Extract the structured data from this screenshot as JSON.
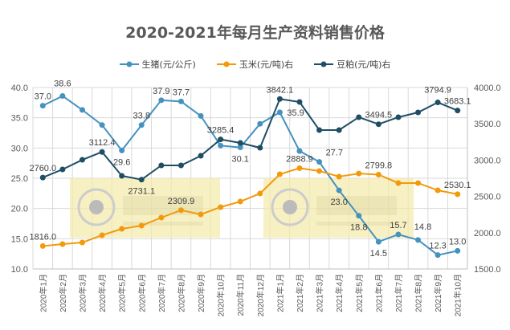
{
  "chart_data": {
    "type": "line",
    "title": "2020-2021年每月生产资料销售价格",
    "categories": [
      "2020年1月",
      "2020年2月",
      "2020年3月",
      "2020年4月",
      "2020年5月",
      "2020年6月",
      "2020年7月",
      "2020年8月",
      "2020年9月",
      "2020年10月",
      "2020年11月",
      "2020年12月",
      "2021年1月",
      "2021年2月",
      "2021年3月",
      "2021年4月",
      "2021年5月",
      "2021年6月",
      "2021年7月",
      "2021年8月",
      "2021年9月",
      "2021年10月"
    ],
    "y_left": {
      "min": 10,
      "max": 40,
      "ticks": [
        "10.0",
        "15.0",
        "20.0",
        "25.0",
        "30.0",
        "35.0",
        "40.0"
      ]
    },
    "y_right": {
      "min": 1500,
      "max": 4000,
      "ticks": [
        "1500.0",
        "2000.0",
        "2500.0",
        "3000.0",
        "3500.0",
        "4000.0"
      ]
    },
    "grid": true,
    "legend_position": "top",
    "series": [
      {
        "name": "生猪(元/公斤)",
        "axis": "left",
        "color": "#4592BF",
        "values": [
          37.0,
          38.6,
          36.3,
          33.8,
          29.6,
          33.8,
          37.9,
          37.7,
          35.3,
          30.4,
          30.1,
          34.0,
          35.9,
          29.5,
          27.7,
          23.0,
          18.8,
          14.5,
          15.7,
          14.8,
          12.3,
          13.0
        ],
        "labels": [
          "37.0",
          "38.6",
          null,
          null,
          "29.6",
          "33.8",
          "37.9",
          "37.7",
          null,
          null,
          "30.1",
          null,
          "35.9",
          null,
          "27.7",
          "23.0",
          "18.8",
          "14.5",
          "15.7",
          "14.8",
          "12.3",
          "13.0"
        ]
      },
      {
        "name": "玉米(元/吨)右",
        "axis": "right",
        "color": "#F29A0C",
        "values": [
          1816.0,
          1843,
          1865,
          1965,
          2053,
          2097,
          2208,
          2309.9,
          2252,
          2352,
          2429,
          2540,
          2805,
          2888.9,
          2850,
          2772,
          2815,
          2799.8,
          2684,
          2684,
          2584,
          2530.1
        ],
        "labels": [
          "1816.0",
          null,
          null,
          null,
          null,
          null,
          null,
          "2309.9",
          null,
          null,
          null,
          null,
          null,
          "2888.9",
          null,
          null,
          null,
          "2799.8",
          null,
          null,
          null,
          "2530.1"
        ]
      },
      {
        "name": "豆粕(元/吨)右",
        "axis": "right",
        "color": "#1F4E64",
        "values": [
          2760.0,
          2872,
          3004,
          3112.4,
          2783,
          2731.1,
          2927,
          2927,
          3060,
          3285.4,
          3237,
          3170,
          3842.1,
          3801,
          3414,
          3414,
          3591,
          3494.5,
          3591,
          3657,
          3794.9,
          3683.1
        ],
        "labels": [
          "2760.0",
          null,
          null,
          "3112.4",
          null,
          "2731.1",
          null,
          null,
          null,
          "3285.4",
          null,
          null,
          "3842.1",
          null,
          null,
          null,
          null,
          "3494.5",
          null,
          null,
          "3794.9",
          "3683.1"
        ]
      }
    ]
  },
  "watermark": "大畜牧 www.dxumu.com"
}
